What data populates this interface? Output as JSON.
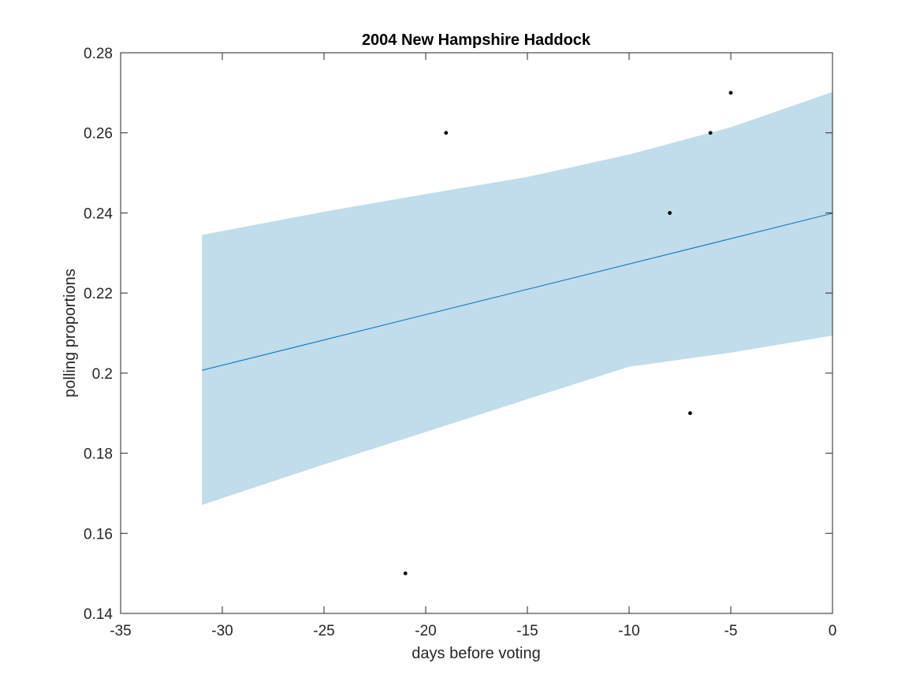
{
  "chart_data": {
    "type": "scatter",
    "title": "2004 New Hampshire Haddock",
    "xlabel": "days before voting",
    "ylabel": "polling proportions",
    "xlim": [
      -35,
      0
    ],
    "ylim": [
      0.14,
      0.28
    ],
    "xticks": [
      -35,
      -30,
      -25,
      -20,
      -15,
      -10,
      -5,
      0
    ],
    "xtick_labels": [
      "-35",
      "-30",
      "-25",
      "-20",
      "-15",
      "-10",
      "-5",
      "0"
    ],
    "yticks": [
      0.14,
      0.16,
      0.18,
      0.2,
      0.22,
      0.24,
      0.26,
      0.28
    ],
    "ytick_labels": [
      "0.14",
      "0.16",
      "0.18",
      "0.2",
      "0.22",
      "0.24",
      "0.26",
      "0.28"
    ],
    "grid": false,
    "points": [
      {
        "x": -21,
        "y": 0.15
      },
      {
        "x": -19,
        "y": 0.26
      },
      {
        "x": -8,
        "y": 0.24
      },
      {
        "x": -7,
        "y": 0.19
      },
      {
        "x": -6,
        "y": 0.26
      },
      {
        "x": -5,
        "y": 0.27
      }
    ],
    "fit_line": {
      "x": [
        -31,
        0
      ],
      "y": [
        0.2007,
        0.2399
      ]
    },
    "confidence_band": {
      "x": [
        -31,
        -25,
        -20,
        -15,
        -10,
        -5,
        0
      ],
      "upper": [
        0.2345,
        0.2403,
        0.2447,
        0.249,
        0.2546,
        0.2614,
        0.2702
      ],
      "lower": [
        0.1671,
        0.1772,
        0.1853,
        0.1935,
        0.2016,
        0.2051,
        0.2094
      ]
    },
    "colors": {
      "band": "#c1dcea",
      "line": "#0072bd",
      "points": "#000000",
      "axes": "#262626"
    }
  }
}
